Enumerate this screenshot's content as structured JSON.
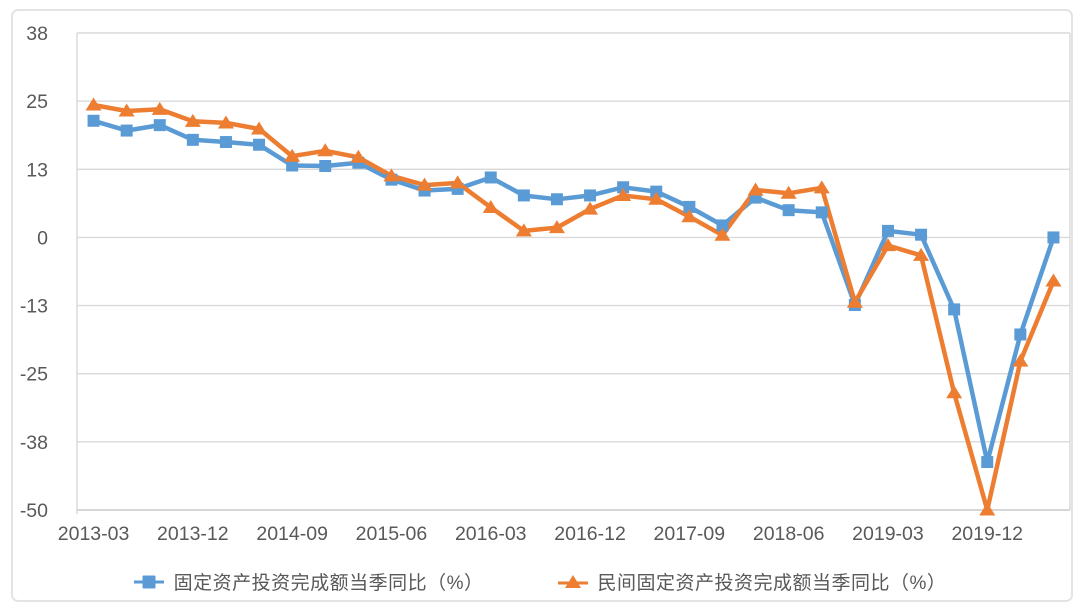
{
  "chart_data": {
    "type": "line",
    "title": "",
    "xlabel": "",
    "ylabel": "",
    "x": [
      "2013-03",
      "2013-06",
      "2013-09",
      "2013-12",
      "2014-03",
      "2014-06",
      "2014-09",
      "2014-12",
      "2015-03",
      "2015-06",
      "2015-09",
      "2015-12",
      "2016-03",
      "2016-06",
      "2016-09",
      "2016-12",
      "2017-03",
      "2017-06",
      "2017-09",
      "2017-12",
      "2018-03",
      "2018-06",
      "2018-09",
      "2018-12",
      "2019-03",
      "2019-06",
      "2019-09",
      "2019-12",
      "2020-03",
      "2020-06"
    ],
    "x_tick_every": 3,
    "series": [
      {
        "name": "固定资产投资完成额当季同比（%）",
        "color": "#5B9BD5",
        "marker": "square",
        "values": [
          21.4,
          19.6,
          20.6,
          17.9,
          17.5,
          17.0,
          13.2,
          13.1,
          13.7,
          10.6,
          8.6,
          8.9,
          11.0,
          7.7,
          7.0,
          7.7,
          9.2,
          8.4,
          5.6,
          2.2,
          7.3,
          5.0,
          4.6,
          -12.4,
          1.2,
          0.5,
          -13.2,
          -41.2,
          -17.8,
          0.0
        ]
      },
      {
        "name": "民间固定资产投资完成额当季同比（%）",
        "color": "#ED7D31",
        "marker": "triangle",
        "values": [
          24.3,
          23.2,
          23.5,
          21.3,
          21.0,
          19.9,
          14.9,
          15.9,
          14.7,
          11.3,
          9.6,
          10.0,
          5.5,
          1.2,
          1.8,
          5.2,
          7.7,
          7.0,
          3.8,
          0.4,
          8.7,
          8.1,
          9.1,
          -11.9,
          -1.5,
          -3.3,
          -28.5,
          -50.0,
          -22.7,
          -8.0
        ]
      }
    ],
    "y_axis": {
      "min": -50,
      "max": 37.5,
      "tick_labels": [
        "38",
        "25",
        "13",
        "0",
        "-13",
        "-25",
        "-38",
        "-50"
      ],
      "tick_values": [
        37.5,
        25,
        12.5,
        0,
        -12.5,
        -25,
        -37.5,
        -50
      ]
    },
    "grid": true,
    "legend_position": "bottom",
    "colors": {
      "grid": "#D9D9D9",
      "axis_line": "#C9C9C9",
      "axis_text": "#595959",
      "frame_border": "#E4E4E4",
      "background": "#FFFFFF"
    }
  }
}
